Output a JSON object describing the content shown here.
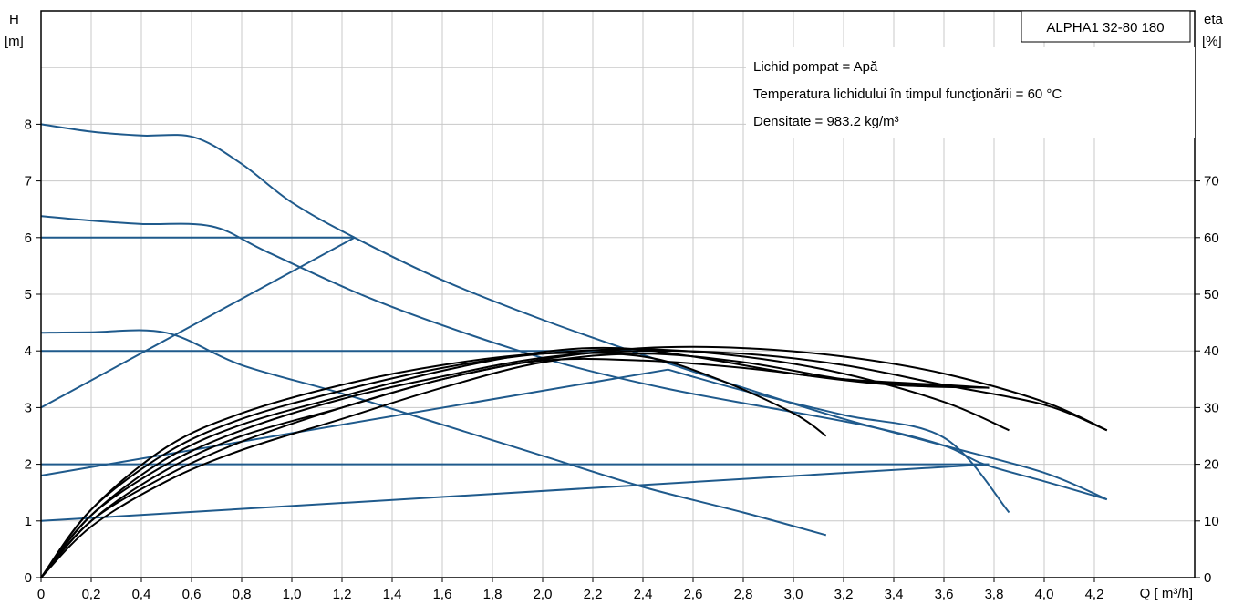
{
  "chart_data": {
    "type": "line",
    "title": "ALPHA1 32-80 180",
    "xlabel": "Q [ m³/h]",
    "ylabel": "H",
    "ylabel_unit": "[m]",
    "y2label": "eta",
    "y2label_unit": "[%]",
    "info_lines": [
      "Lichid pompat = Apă",
      "Temperatura lichidului în timpul funcţionării = 60  °C",
      "Densitate = 983.2  kg/m³"
    ],
    "xlim": [
      0,
      4.6
    ],
    "ylim": [
      0,
      10
    ],
    "y2lim": [
      0,
      100
    ],
    "grid": true,
    "x_ticks": [
      "0",
      "0,2",
      "0,4",
      "0,6",
      "0,8",
      "1,0",
      "1,2",
      "1,4",
      "1,6",
      "1,8",
      "2,0",
      "2,2",
      "2,4",
      "2,6",
      "2,8",
      "3,0",
      "3,2",
      "3,4",
      "3,6",
      "3,8",
      "4,0",
      "4,2"
    ],
    "y_ticks": [
      "0",
      "1",
      "2",
      "3",
      "4",
      "5",
      "6",
      "7",
      "8"
    ],
    "y2_ticks": [
      "0",
      "10",
      "20",
      "30",
      "40",
      "50",
      "60",
      "70"
    ],
    "head_color": "#1f5a8c",
    "eff_color": "#000000",
    "head_series": [
      {
        "points": [
          [
            0,
            8.0
          ],
          [
            0.2,
            7.87
          ],
          [
            0.4,
            7.8
          ],
          [
            0.61,
            7.77
          ],
          [
            0.8,
            7.3
          ],
          [
            1.0,
            6.62
          ],
          [
            1.25,
            6.0
          ],
          [
            1.6,
            5.25
          ],
          [
            2.0,
            4.55
          ],
          [
            2.4,
            3.93
          ],
          [
            2.8,
            3.35
          ],
          [
            3.2,
            2.8
          ],
          [
            3.6,
            2.33
          ],
          [
            4.0,
            1.85
          ],
          [
            4.25,
            1.38
          ]
        ]
      },
      {
        "points": [
          [
            0,
            6.38
          ],
          [
            0.2,
            6.3
          ],
          [
            0.4,
            6.24
          ],
          [
            0.68,
            6.2
          ],
          [
            0.9,
            5.75
          ],
          [
            1.3,
            4.95
          ],
          [
            1.7,
            4.3
          ],
          [
            2.1,
            3.75
          ],
          [
            2.5,
            3.33
          ],
          [
            2.9,
            3.0
          ],
          [
            3.3,
            2.67
          ],
          [
            3.6,
            2.33
          ],
          [
            3.76,
            2.0
          ],
          [
            4.0,
            1.7
          ],
          [
            4.25,
            1.38
          ]
        ]
      },
      {
        "points": [
          [
            0,
            4.32
          ],
          [
            0.2,
            4.33
          ],
          [
            0.5,
            4.32
          ],
          [
            0.8,
            3.75
          ],
          [
            1.2,
            3.25
          ],
          [
            1.6,
            2.7
          ],
          [
            2.0,
            2.15
          ],
          [
            2.4,
            1.6
          ],
          [
            2.8,
            1.15
          ],
          [
            3.13,
            0.75
          ]
        ]
      },
      {
        "points": [
          [
            0,
            6.0
          ],
          [
            1.25,
            6.0
          ]
        ]
      },
      {
        "points": [
          [
            0,
            3.0
          ],
          [
            1.25,
            6.0
          ]
        ]
      },
      {
        "points": [
          [
            0,
            4.0
          ],
          [
            2.5,
            4.0
          ]
        ]
      },
      {
        "points": [
          [
            0,
            1.8
          ],
          [
            2.5,
            3.67
          ]
        ]
      },
      {
        "points": [
          [
            0,
            2.0
          ],
          [
            3.78,
            2.0
          ]
        ]
      },
      {
        "points": [
          [
            0,
            1.0
          ],
          [
            3.78,
            2.0
          ]
        ]
      },
      {
        "points": [
          [
            2.5,
            3.67
          ],
          [
            2.8,
            3.3
          ],
          [
            3.2,
            2.87
          ],
          [
            3.6,
            2.47
          ],
          [
            3.86,
            1.15
          ]
        ]
      }
    ],
    "eff_series": [
      {
        "points": [
          [
            0,
            0
          ],
          [
            0.2,
            12
          ],
          [
            0.5,
            22
          ],
          [
            0.8,
            28
          ],
          [
            1.2,
            33
          ],
          [
            1.6,
            37
          ],
          [
            2.0,
            39.5
          ],
          [
            2.4,
            40.3
          ],
          [
            2.8,
            39
          ],
          [
            3.2,
            36
          ],
          [
            3.6,
            31
          ],
          [
            3.86,
            26
          ]
        ]
      },
      {
        "points": [
          [
            0,
            0
          ],
          [
            0.2,
            11
          ],
          [
            0.5,
            20
          ],
          [
            0.8,
            26
          ],
          [
            1.2,
            31.5
          ],
          [
            1.6,
            35.5
          ],
          [
            2.0,
            38.8
          ],
          [
            2.4,
            40
          ],
          [
            2.8,
            39.5
          ],
          [
            3.2,
            37.5
          ],
          [
            3.6,
            34
          ],
          [
            4.0,
            30.5
          ],
          [
            4.25,
            26
          ]
        ]
      },
      {
        "points": [
          [
            0,
            0
          ],
          [
            0.2,
            10
          ],
          [
            0.5,
            18
          ],
          [
            0.8,
            24
          ],
          [
            1.2,
            30
          ],
          [
            1.6,
            35
          ],
          [
            2.0,
            38.5
          ],
          [
            2.4,
            40.5
          ],
          [
            2.8,
            40.5
          ],
          [
            3.2,
            39
          ],
          [
            3.6,
            36
          ],
          [
            4.0,
            31
          ],
          [
            4.25,
            26
          ]
        ]
      },
      {
        "points": [
          [
            0,
            0
          ],
          [
            0.2,
            12
          ],
          [
            0.5,
            23
          ],
          [
            0.8,
            29
          ],
          [
            1.2,
            34
          ],
          [
            1.6,
            37.5
          ],
          [
            2.0,
            39.5
          ],
          [
            2.4,
            39
          ],
          [
            2.7,
            35
          ],
          [
            3.0,
            29
          ],
          [
            3.13,
            25
          ]
        ]
      },
      {
        "points": [
          [
            0,
            0
          ],
          [
            0.2,
            11
          ],
          [
            0.5,
            21
          ],
          [
            0.8,
            27
          ],
          [
            1.2,
            32
          ],
          [
            1.6,
            36.5
          ],
          [
            2.0,
            39.8
          ],
          [
            2.3,
            40.5
          ],
          [
            2.6,
            39
          ],
          [
            3.0,
            36
          ],
          [
            3.4,
            34
          ],
          [
            3.78,
            33.5
          ]
        ]
      },
      {
        "points": [
          [
            0,
            0
          ],
          [
            0.2,
            9
          ],
          [
            0.5,
            17
          ],
          [
            0.8,
            22.5
          ],
          [
            1.2,
            28
          ],
          [
            1.6,
            33.5
          ],
          [
            2.0,
            38
          ],
          [
            2.4,
            39.5
          ],
          [
            2.8,
            38
          ],
          [
            3.2,
            35
          ],
          [
            3.5,
            34
          ],
          [
            3.78,
            33.5
          ]
        ]
      },
      {
        "points": [
          [
            0,
            0
          ],
          [
            0.2,
            10
          ],
          [
            0.5,
            19
          ],
          [
            0.8,
            25
          ],
          [
            1.2,
            30
          ],
          [
            1.6,
            35
          ],
          [
            2.0,
            38.3
          ],
          [
            2.4,
            38.3
          ],
          [
            2.8,
            37
          ],
          [
            3.2,
            35
          ],
          [
            3.6,
            34
          ],
          [
            3.78,
            33.5
          ]
        ]
      }
    ]
  }
}
